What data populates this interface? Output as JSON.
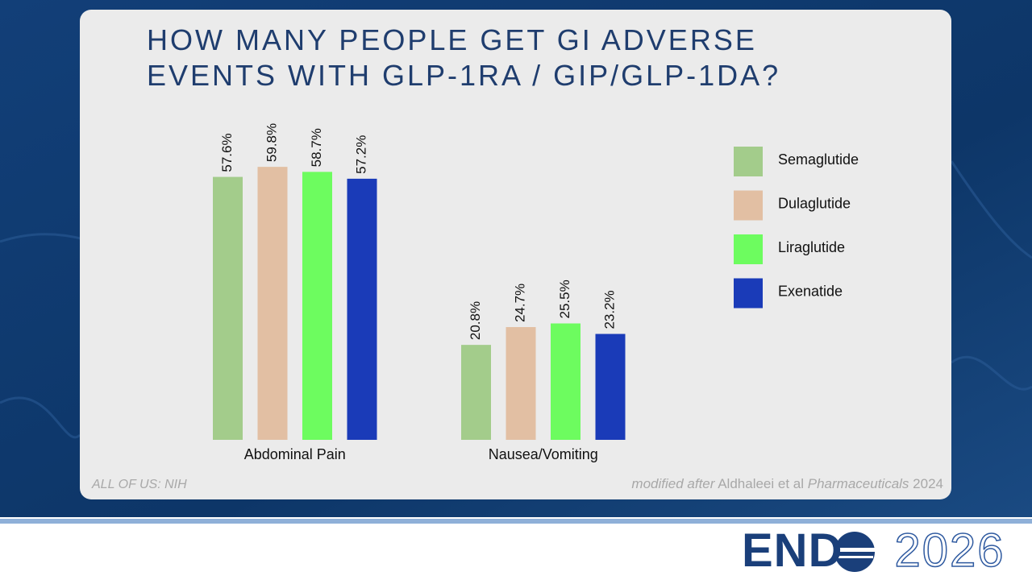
{
  "chart_data": {
    "type": "bar",
    "title": "HOW MANY PEOPLE GET GI ADVERSE EVENTS WITH GLP-1RA / GIP/GLP-1DA?",
    "categories": [
      "Abdominal Pain",
      "Nausea/Vomiting"
    ],
    "series": [
      {
        "name": "Semaglutide",
        "color": "#a3cc8b",
        "values": [
          57.6,
          20.8
        ],
        "value_labels": [
          "57.6%",
          "20.8%"
        ]
      },
      {
        "name": "Dulaglutide",
        "color": "#e2bfa3",
        "values": [
          59.8,
          24.7
        ],
        "value_labels": [
          "59.8%",
          "24.7%"
        ]
      },
      {
        "name": "Liraglutide",
        "color": "#6dfc5f",
        "values": [
          58.7,
          25.5
        ],
        "value_labels": [
          "58.7%",
          "25.5%"
        ]
      },
      {
        "name": "Exenatide",
        "color": "#1a3bb8",
        "values": [
          57.2,
          23.2
        ],
        "value_labels": [
          "57.2%",
          "23.2%"
        ]
      }
    ],
    "ylim": [
      0,
      60
    ],
    "legend": "right",
    "source_left": "ALL OF US: NIH",
    "source_right": {
      "prefix": "modified after",
      "authors": "Aldhaleei et al",
      "journal": "Pharmaceuticals",
      "year": "2024"
    }
  },
  "logo": {
    "left": "END",
    "right": "2026"
  }
}
